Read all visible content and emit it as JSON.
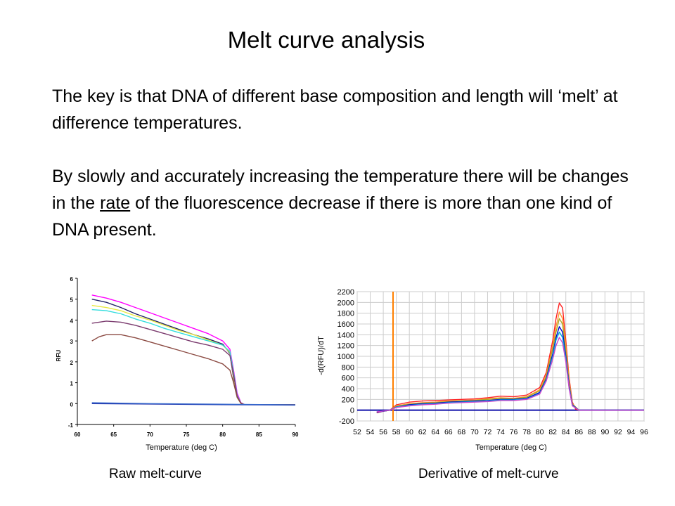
{
  "slide": {
    "title": "Melt curve analysis",
    "para1": "The key is that DNA of different base composition and length will ‘melt’ at difference temperatures.",
    "para2_pre": "By slowly and accurately increasing the temperature there will be changes in the ",
    "para2_underline": "rate",
    "para2_post": " of the fluorescence decrease if there is more than one kind of DNA present.",
    "caption_left": "Raw melt-curve",
    "caption_right": "Derivative of melt-curve"
  },
  "chart_data": [
    {
      "type": "line",
      "title": "",
      "xlabel": "Temperature (deg C)",
      "ylabel": "RFU",
      "xlim": [
        60,
        90
      ],
      "ylim": [
        -1,
        6
      ],
      "xticks": [
        60,
        65,
        70,
        75,
        80,
        85,
        90
      ],
      "yticks": [
        -1,
        0,
        1,
        2,
        3,
        4,
        5,
        6
      ],
      "grid": false,
      "series": [
        {
          "color": "#ff00ff",
          "x": [
            62,
            64,
            66,
            68,
            70,
            72,
            74,
            76,
            78,
            80,
            81,
            81.5,
            82,
            82.5,
            83,
            84,
            86,
            88,
            90
          ],
          "y": [
            5.2,
            5.05,
            4.85,
            4.6,
            4.35,
            4.1,
            3.85,
            3.6,
            3.35,
            3.0,
            2.6,
            1.6,
            0.5,
            0.05,
            -0.05,
            -0.05,
            -0.05,
            -0.05,
            -0.05
          ]
        },
        {
          "color": "#222266",
          "x": [
            62,
            64,
            66,
            68,
            70,
            72,
            74,
            76,
            78,
            80,
            81,
            81.5,
            82,
            82.5,
            83,
            84,
            86,
            88,
            90
          ],
          "y": [
            5.0,
            4.85,
            4.6,
            4.3,
            4.05,
            3.8,
            3.55,
            3.3,
            3.1,
            2.85,
            2.4,
            1.2,
            0.3,
            0.02,
            -0.05,
            -0.05,
            -0.05,
            -0.05,
            -0.05
          ]
        },
        {
          "color": "#e8e840",
          "x": [
            62,
            64,
            66,
            68,
            70,
            72,
            74,
            76,
            78,
            80,
            81,
            81.5,
            82,
            82.5,
            83,
            84,
            86,
            88,
            90
          ],
          "y": [
            4.7,
            4.6,
            4.45,
            4.2,
            4.0,
            3.75,
            3.5,
            3.3,
            3.05,
            2.8,
            2.45,
            1.3,
            0.3,
            0.02,
            -0.05,
            -0.05,
            -0.05,
            -0.05,
            -0.05
          ]
        },
        {
          "color": "#33dddd",
          "x": [
            62,
            64,
            66,
            68,
            70,
            72,
            74,
            76,
            78,
            80,
            81,
            81.5,
            82,
            82.5,
            83,
            84,
            86,
            88,
            90
          ],
          "y": [
            4.5,
            4.45,
            4.3,
            4.05,
            3.85,
            3.6,
            3.4,
            3.2,
            3.0,
            2.8,
            2.5,
            1.5,
            0.4,
            0.03,
            -0.05,
            -0.05,
            -0.05,
            -0.05,
            -0.05
          ]
        },
        {
          "color": "#7a3a6e",
          "x": [
            62,
            64,
            66,
            68,
            70,
            72,
            74,
            76,
            78,
            80,
            81,
            81.5,
            82,
            82.5,
            83,
            84,
            86,
            88,
            90
          ],
          "y": [
            3.85,
            3.95,
            3.9,
            3.75,
            3.55,
            3.35,
            3.15,
            2.95,
            2.8,
            2.6,
            2.3,
            1.4,
            0.35,
            0.03,
            -0.05,
            -0.05,
            -0.05,
            -0.05,
            -0.05
          ]
        },
        {
          "color": "#8b4a42",
          "x": [
            62,
            63,
            64,
            66,
            68,
            70,
            72,
            74,
            76,
            78,
            80,
            81,
            81.5,
            82,
            82.5,
            83,
            84,
            86,
            88,
            90
          ],
          "y": [
            3.0,
            3.2,
            3.3,
            3.3,
            3.15,
            2.95,
            2.75,
            2.55,
            2.35,
            2.15,
            1.9,
            1.6,
            1.0,
            0.3,
            0.02,
            -0.05,
            -0.05,
            -0.05,
            -0.05,
            -0.05
          ]
        },
        {
          "color": "#2233aa",
          "x": [
            62,
            70,
            80,
            90
          ],
          "y": [
            0.0,
            -0.02,
            -0.05,
            -0.07
          ]
        },
        {
          "color": "#3366cc",
          "x": [
            62,
            70,
            80,
            90
          ],
          "y": [
            0.04,
            0.0,
            -0.03,
            -0.06
          ]
        }
      ]
    },
    {
      "type": "line",
      "title": "",
      "xlabel": "Temperature (deg C)",
      "ylabel": "-d(RFU)/dT",
      "xlim": [
        52,
        96
      ],
      "ylim": [
        -200,
        2200
      ],
      "xticks": [
        52,
        54,
        56,
        58,
        60,
        62,
        64,
        66,
        68,
        70,
        72,
        74,
        76,
        78,
        80,
        82,
        84,
        86,
        88,
        90,
        92,
        94,
        96
      ],
      "yticks": [
        -200,
        0,
        200,
        400,
        600,
        800,
        1000,
        1200,
        1400,
        1600,
        1800,
        2000,
        2200
      ],
      "grid": true,
      "threshold_x": 57.5,
      "series": [
        {
          "color": "#ff2222",
          "x": [
            55,
            56,
            57,
            58,
            60,
            62,
            64,
            66,
            68,
            70,
            72,
            74,
            76,
            78,
            80,
            81,
            82,
            82.5,
            83,
            83.5,
            84,
            84.5,
            85,
            85.5,
            86,
            88,
            96
          ],
          "y": [
            -50,
            -20,
            0,
            100,
            150,
            170,
            180,
            190,
            200,
            210,
            230,
            260,
            250,
            280,
            420,
            700,
            1300,
            1700,
            1990,
            1900,
            1300,
            600,
            150,
            20,
            0,
            0,
            0
          ]
        },
        {
          "color": "#ff9933",
          "x": [
            55,
            57,
            58,
            60,
            62,
            64,
            66,
            68,
            70,
            72,
            74,
            76,
            78,
            80,
            81,
            82,
            82.5,
            83,
            83.5,
            84,
            84.5,
            85,
            86,
            96
          ],
          "y": [
            -40,
            0,
            80,
            120,
            140,
            150,
            170,
            180,
            190,
            210,
            230,
            220,
            250,
            380,
            650,
            1200,
            1550,
            1820,
            1700,
            1200,
            550,
            120,
            0,
            0
          ]
        },
        {
          "color": "#aaaa22",
          "x": [
            55,
            57,
            58,
            60,
            62,
            64,
            66,
            68,
            70,
            72,
            74,
            76,
            78,
            80,
            81,
            82,
            82.5,
            83,
            83.5,
            84,
            84.5,
            85,
            86,
            96
          ],
          "y": [
            -40,
            0,
            70,
            110,
            130,
            140,
            160,
            170,
            180,
            200,
            220,
            210,
            240,
            360,
            620,
            1150,
            1450,
            1700,
            1600,
            1100,
            500,
            110,
            0,
            0
          ]
        },
        {
          "color": "#0000cc",
          "x": [
            55,
            57,
            58,
            60,
            62,
            64,
            66,
            68,
            70,
            72,
            74,
            76,
            78,
            80,
            81,
            82,
            82.5,
            83,
            83.5,
            84,
            84.5,
            85,
            86,
            96
          ],
          "y": [
            -40,
            0,
            60,
            100,
            120,
            130,
            150,
            160,
            170,
            180,
            200,
            200,
            220,
            330,
            580,
            1050,
            1350,
            1550,
            1450,
            1000,
            450,
            100,
            0,
            0
          ]
        },
        {
          "color": "#00aadd",
          "x": [
            55,
            57,
            58,
            60,
            62,
            64,
            66,
            68,
            70,
            72,
            74,
            76,
            78,
            80,
            81,
            82,
            82.5,
            83,
            83.5,
            84,
            84.5,
            85,
            86,
            96
          ],
          "y": [
            -30,
            0,
            60,
            90,
            110,
            120,
            140,
            150,
            160,
            170,
            190,
            190,
            210,
            310,
            560,
            1000,
            1300,
            1450,
            1350,
            950,
            420,
            90,
            0,
            0
          ]
        },
        {
          "color": "#cc44cc",
          "x": [
            55,
            57,
            58,
            60,
            62,
            64,
            66,
            68,
            70,
            72,
            74,
            76,
            78,
            80,
            81,
            82,
            82.5,
            83,
            83.5,
            84,
            84.5,
            85,
            86,
            96
          ],
          "y": [
            -30,
            0,
            50,
            80,
            100,
            110,
            130,
            140,
            150,
            160,
            180,
            180,
            200,
            300,
            540,
            950,
            1200,
            1350,
            1250,
            900,
            400,
            80,
            0,
            0
          ]
        }
      ]
    }
  ]
}
